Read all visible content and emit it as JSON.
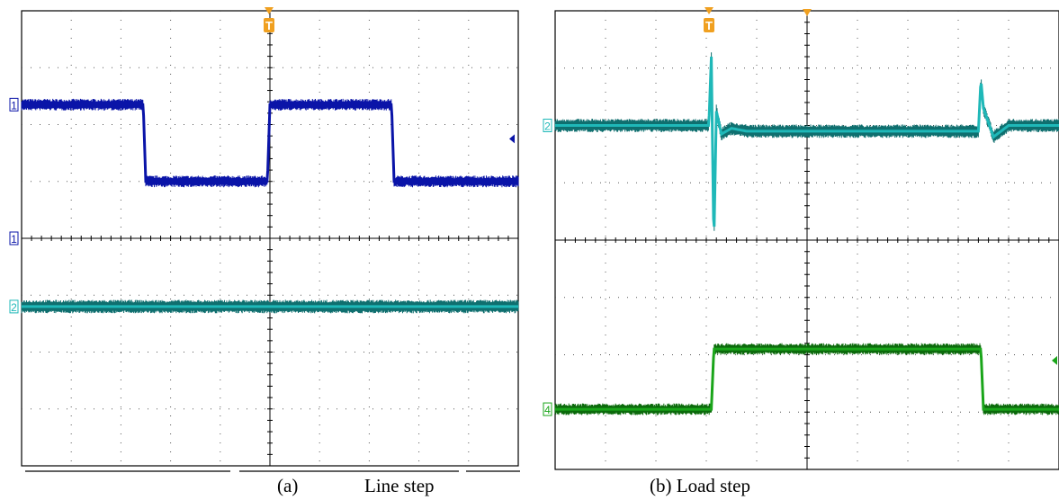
{
  "captions": {
    "a_label": "(a)",
    "a_title": "Line step",
    "b_text": "(b) Load step"
  },
  "markers": {
    "trigger": "T",
    "ch1": "1",
    "ch2": "2",
    "ch4": "4"
  },
  "colors": {
    "ch1": "#0a14a8",
    "ch2": "#1fb8b8",
    "ch2_dark": "#0f6f6f",
    "ch4": "#1aa51a",
    "ch4_dark": "#0b6a0b",
    "trigger": "#f0a020",
    "grid": "#000000"
  },
  "chart_data": [
    {
      "type": "line",
      "panel": "a",
      "title": "Line step",
      "xlim": [
        0,
        10
      ],
      "ylim": [
        -4,
        4
      ],
      "grid": true,
      "series": [
        {
          "channel": "1",
          "color_key": "ch1",
          "x": [
            0,
            2.45,
            2.5,
            4.95,
            5.0,
            7.45,
            7.5,
            10
          ],
          "y": [
            2.35,
            2.35,
            1.0,
            1.0,
            2.35,
            2.35,
            1.0,
            1.0
          ]
        },
        {
          "channel": "2",
          "color_key": "ch2",
          "x": [
            0,
            10
          ],
          "y": [
            -1.2,
            -1.2
          ]
        }
      ]
    },
    {
      "type": "line",
      "panel": "b",
      "title": "Load step",
      "xlim": [
        0,
        10
      ],
      "ylim": [
        -4,
        4
      ],
      "grid": true,
      "series": [
        {
          "channel": "2",
          "color_key": "ch2",
          "x": [
            0,
            3.05,
            3.1,
            3.15,
            3.2,
            3.3,
            3.5,
            3.8,
            8.4,
            8.45,
            8.5,
            8.7,
            9.0,
            10
          ],
          "y": [
            2.0,
            2.0,
            3.2,
            -0.1,
            2.25,
            1.85,
            1.95,
            1.9,
            1.9,
            2.8,
            2.3,
            1.8,
            2.0,
            2.0
          ]
        },
        {
          "channel": "4",
          "color_key": "ch4",
          "x": [
            0,
            3.1,
            3.15,
            3.25,
            8.45,
            8.5,
            10
          ],
          "y": [
            -2.95,
            -2.95,
            -1.9,
            -1.9,
            -1.9,
            -2.95,
            -2.95
          ]
        }
      ]
    }
  ]
}
